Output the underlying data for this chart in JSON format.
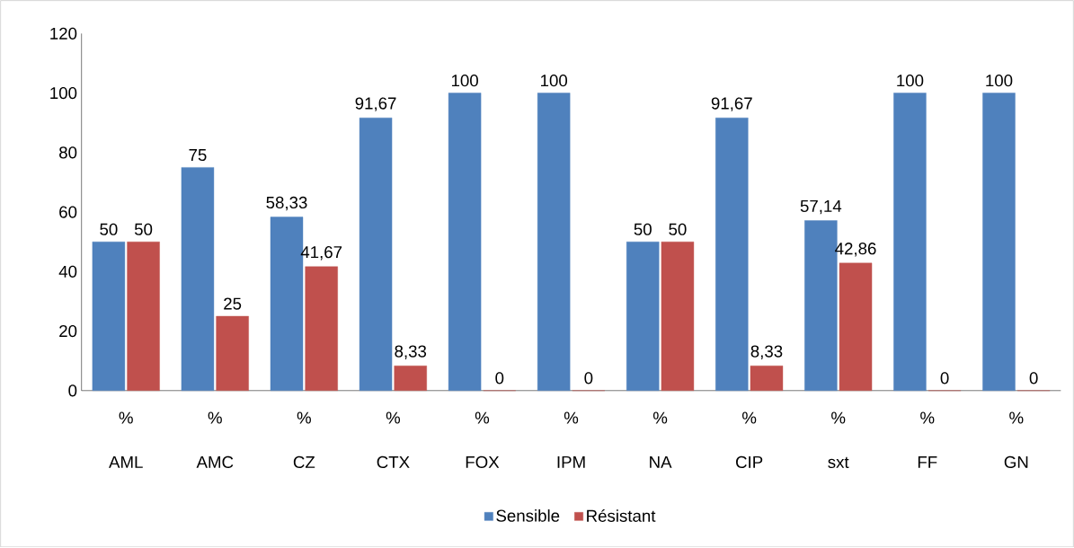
{
  "chart_data": {
    "type": "bar",
    "categories": [
      "% AML",
      "% AMC",
      "% CZ",
      "% CTX",
      "% FOX",
      "% IPM",
      "% NA",
      "% CIP",
      "% sxt",
      "% FF",
      "% GN"
    ],
    "series": [
      {
        "name": "Sensible",
        "color": "#4f81bd",
        "values": [
          50,
          75,
          58.33,
          91.67,
          100,
          100,
          50,
          91.67,
          57.14,
          100,
          100
        ],
        "value_labels": [
          "50",
          "75",
          "58,33",
          "91,67",
          "100",
          "100",
          "50",
          "91,67",
          "57,14",
          "100",
          "100"
        ]
      },
      {
        "name": "Résistant",
        "color": "#c0504d",
        "values": [
          50,
          25,
          41.67,
          8.33,
          0,
          0,
          50,
          8.33,
          42.86,
          0,
          0
        ],
        "value_labels": [
          "50",
          "25",
          "41,67",
          "8,33",
          "0",
          "0",
          "50",
          "8,33",
          "42,86",
          "0",
          "0"
        ]
      }
    ],
    "ylim": [
      0,
      120
    ],
    "yticks": [
      0,
      20,
      40,
      60,
      80,
      100,
      120
    ],
    "grid": false,
    "legend": "bottom"
  }
}
